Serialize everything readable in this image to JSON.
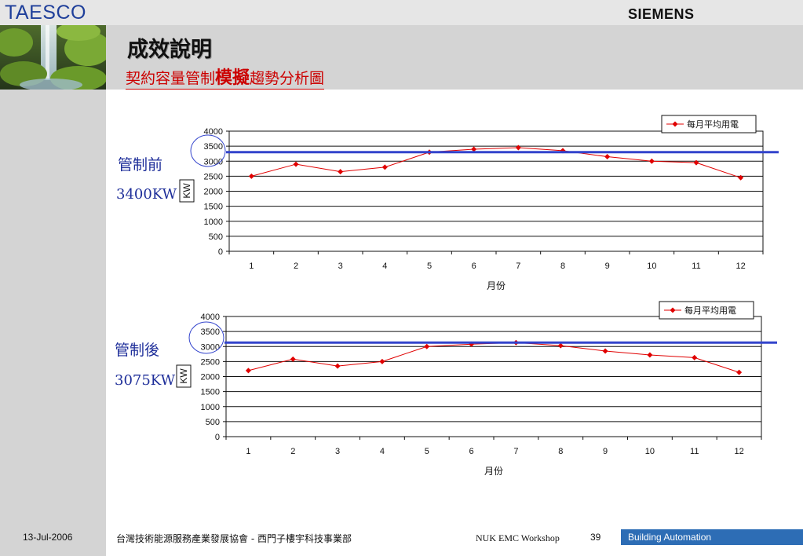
{
  "header": {
    "brand": "TAESCO",
    "logo": "SIEMENS",
    "title": "成效說明",
    "subtitle_pre": "契約容量管制",
    "subtitle_emph": "模擬",
    "subtitle_post": "趨勢分析圖"
  },
  "side_labels": {
    "before_label": "管制前",
    "before_value": "3400KW",
    "after_label": "管制後",
    "after_value": "3075KW"
  },
  "colors": {
    "series_line": "#e00000",
    "reference_line": "#3344cc",
    "circle": "#3344cc"
  },
  "chart_data": [
    {
      "type": "line",
      "categories": [
        "1",
        "2",
        "3",
        "4",
        "5",
        "6",
        "7",
        "8",
        "9",
        "10",
        "11",
        "12"
      ],
      "series": [
        {
          "name": "每月平均用電",
          "values": [
            2500,
            2900,
            2650,
            2800,
            3300,
            3400,
            3450,
            3350,
            3150,
            3000,
            2950,
            2450
          ]
        }
      ],
      "reference_line": 3300,
      "xlabel": "月份",
      "ylabel": "KW",
      "ylim": [
        0,
        4000
      ],
      "yticks": [
        "0",
        "500",
        "1000",
        "1500",
        "2000",
        "2500",
        "3000",
        "3500",
        "4000"
      ],
      "grid": true,
      "legend_position": "top-right"
    },
    {
      "type": "line",
      "categories": [
        "1",
        "2",
        "3",
        "4",
        "5",
        "6",
        "7",
        "8",
        "9",
        "10",
        "11",
        "12"
      ],
      "series": [
        {
          "name": "每月平均用電",
          "values": [
            2200,
            2580,
            2350,
            2500,
            3000,
            3080,
            3130,
            3030,
            2850,
            2720,
            2630,
            2140
          ]
        }
      ],
      "reference_line": 3130,
      "xlabel": "月份",
      "ylabel": "KW",
      "ylim": [
        0,
        4000
      ],
      "yticks": [
        "0",
        "500",
        "1000",
        "1500",
        "2000",
        "2500",
        "3000",
        "3500",
        "4000"
      ],
      "grid": true,
      "legend_position": "top-right"
    }
  ],
  "footer": {
    "date": "13-Jul-2006",
    "org": "台灣技術能源服務產業發展協會 - 西門子樓宇科技事業部",
    "event": "NUK EMC Workshop",
    "page": "39",
    "tagline": "Building Automation"
  }
}
